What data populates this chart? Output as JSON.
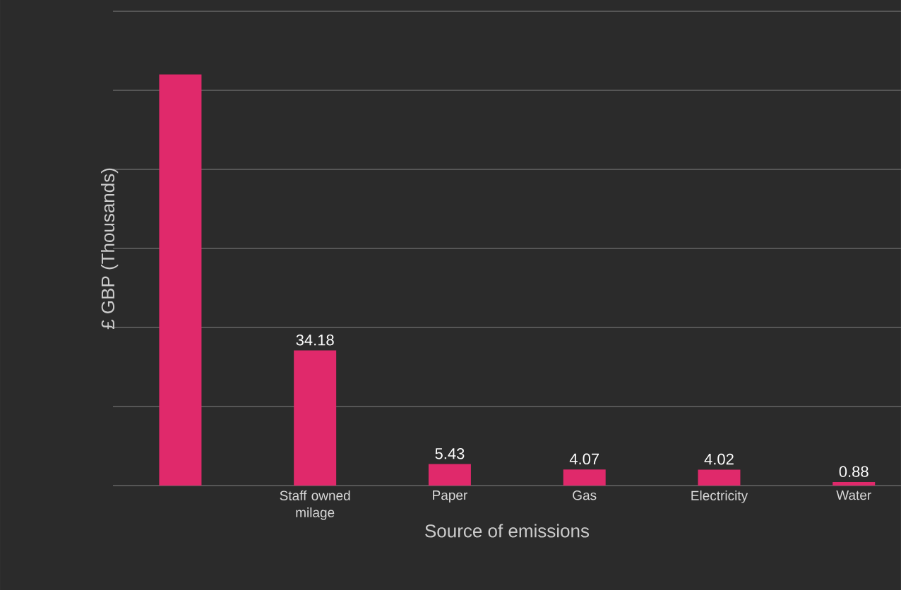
{
  "chart_data": {
    "type": "bar",
    "xlabel": "Source of emissions",
    "ylabel": "£ GBP (Thousands)",
    "categories": [
      null,
      "Staff owned milage",
      "Paper",
      "Gas",
      "Electricity",
      "Water"
    ],
    "values": [
      104,
      34.18,
      5.43,
      4.07,
      4.02,
      0.88
    ],
    "value_labels": [
      null,
      "34.18",
      "5.43",
      "4.07",
      "4.02",
      "0.88"
    ],
    "color": "#e0296b",
    "ylim": [
      0,
      120
    ],
    "yticks": [
      {
        "value": 0,
        "label": null
      },
      {
        "value": 20,
        "label": null
      },
      {
        "value": 40,
        "label": null
      },
      {
        "value": 60,
        "label": null
      },
      {
        "value": 80,
        "label": null
      },
      {
        "value": 100,
        "label": null
      },
      {
        "value": 120,
        "label": null
      }
    ],
    "grid": "y",
    "tick_labels": "x"
  }
}
